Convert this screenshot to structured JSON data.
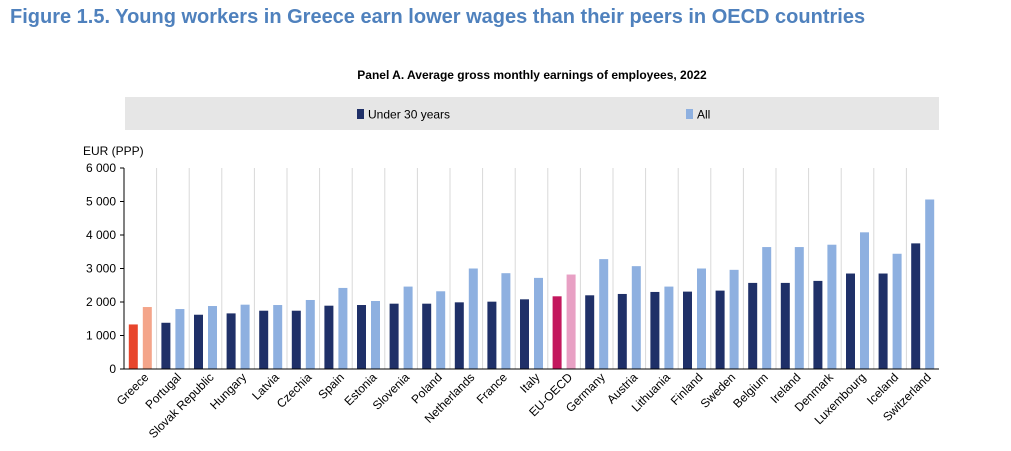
{
  "figure_title": "Figure 1.5. Young workers in Greece earn lower wages than their peers in OECD countries",
  "chart_data": {
    "type": "bar",
    "title": "Panel A. Average gross monthly earnings of employees, 2022",
    "ylabel": "EUR (PPP)",
    "xlabel": "",
    "ylim": [
      0,
      6000
    ],
    "yticks": [
      0,
      1000,
      2000,
      3000,
      4000,
      5000,
      6000
    ],
    "ytick_labels": [
      "0",
      "1 000",
      "2 000",
      "3 000",
      "4 000",
      "5 000",
      "6 000"
    ],
    "grid": false,
    "legend_position": "top",
    "categories": [
      "Greece",
      "Portugal",
      "Slovak Republic",
      "Hungary",
      "Latvia",
      "Czechia",
      "Spain",
      "Estonia",
      "Slovenia",
      "Poland",
      "Netherlands",
      "France",
      "Italy",
      "EU-OECD",
      "Germany",
      "Austria",
      "Lithuania",
      "Finland",
      "Sweden",
      "Belgium",
      "Ireland",
      "Denmark",
      "Luxembourg",
      "Iceland",
      "Switzerland"
    ],
    "series": [
      {
        "name": "Under 30 years",
        "color": "#1f3068",
        "values": [
          1330,
          1380,
          1620,
          1660,
          1740,
          1740,
          1890,
          1910,
          1950,
          1950,
          1990,
          2010,
          2080,
          2170,
          2200,
          2240,
          2300,
          2310,
          2340,
          2570,
          2570,
          2630,
          2850,
          2850,
          3750
        ]
      },
      {
        "name": "All",
        "color": "#8eb0e0",
        "values": [
          1850,
          1790,
          1880,
          1920,
          1910,
          2060,
          2420,
          2030,
          2460,
          2320,
          3000,
          2860,
          2720,
          2820,
          3280,
          3070,
          2460,
          3000,
          2960,
          3640,
          3640,
          3710,
          4080,
          3440,
          5060
        ]
      }
    ],
    "highlight": {
      "Greece": {
        "under30_color": "#e8452c",
        "all_color": "#f4a58a"
      },
      "EU-OECD": {
        "under30_color": "#c3175d",
        "all_color": "#e8a0c4"
      }
    }
  }
}
